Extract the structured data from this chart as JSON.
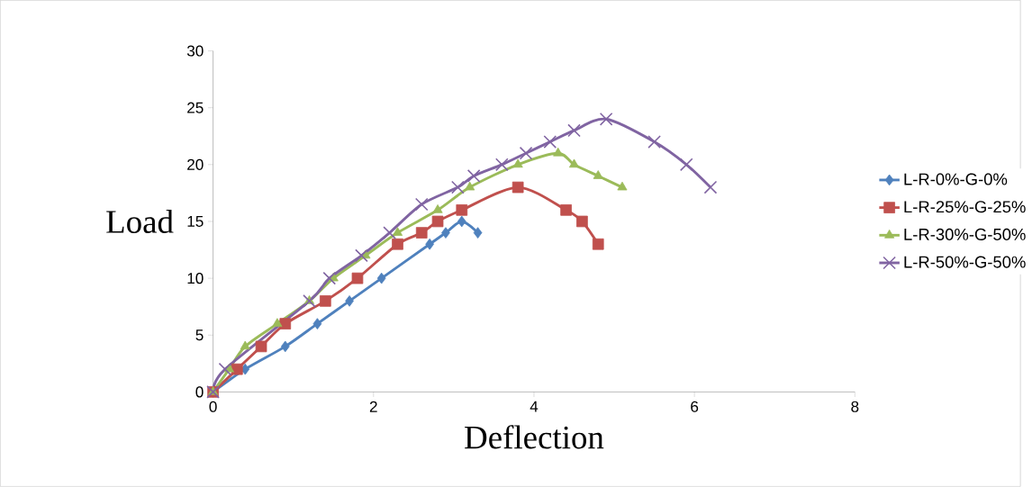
{
  "chart_data": {
    "type": "line",
    "xlabel": "Deflection",
    "ylabel": "Load",
    "xlim": [
      0,
      8
    ],
    "ylim": [
      0,
      30
    ],
    "xticks": [
      0,
      2,
      4,
      6,
      8
    ],
    "yticks": [
      0,
      5,
      10,
      15,
      20,
      25,
      30
    ],
    "legend": "right",
    "grid": false,
    "series": [
      {
        "name": "L-R-0%-G-0%",
        "color": "#4f81bd",
        "marker": "diamond",
        "x": [
          0,
          0.4,
          0.9,
          1.3,
          1.7,
          2.1,
          2.7,
          2.9,
          3.1,
          3.3
        ],
        "values": [
          0,
          2,
          4,
          6,
          8,
          10,
          13,
          14,
          15,
          14
        ]
      },
      {
        "name": "L-R-25%-G-25%",
        "color": "#c0504d",
        "marker": "square",
        "x": [
          0,
          0.3,
          0.6,
          0.9,
          1.4,
          1.8,
          2.3,
          2.6,
          2.8,
          3.1,
          3.8,
          4.4,
          4.6,
          4.8
        ],
        "values": [
          0,
          2,
          4,
          6,
          8,
          10,
          13,
          14,
          15,
          16,
          18,
          16,
          15,
          13
        ]
      },
      {
        "name": "L-R-30%-G-50%",
        "color": "#9bbb59",
        "marker": "triangle",
        "x": [
          0,
          0.2,
          0.4,
          0.8,
          1.2,
          1.5,
          1.9,
          2.3,
          2.8,
          3.2,
          3.8,
          4.3,
          4.5,
          4.8,
          5.1
        ],
        "values": [
          0,
          2,
          4,
          6,
          8,
          10,
          12,
          14,
          16,
          18,
          20,
          21,
          20,
          19,
          18
        ]
      },
      {
        "name": "L-R-50%-G-50%",
        "color": "#8064a2",
        "marker": "cross",
        "x": [
          0,
          0.15,
          1.2,
          1.45,
          1.85,
          2.2,
          2.6,
          3.05,
          3.25,
          3.6,
          3.9,
          4.2,
          4.5,
          4.9,
          5.5,
          5.9,
          6.2
        ],
        "values": [
          0,
          2,
          8,
          10,
          12,
          14,
          16.5,
          18,
          19,
          20,
          21,
          22,
          23,
          24,
          22,
          20,
          18
        ]
      }
    ]
  }
}
